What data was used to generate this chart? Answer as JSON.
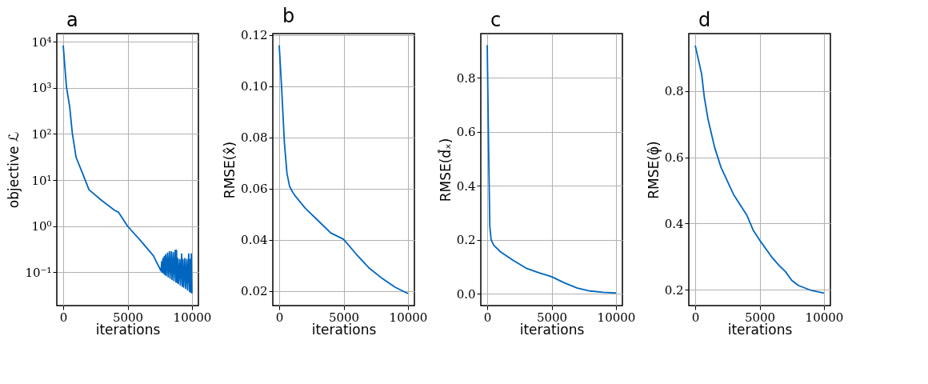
{
  "chart_data": [
    {
      "type": "line",
      "title": "a",
      "xlabel": "iterations",
      "ylabel": "objective ℒ",
      "log": "y",
      "grid": true,
      "xlim": [
        -500,
        10500
      ],
      "xticks": [
        0,
        5000,
        10000
      ],
      "ylim": [
        0.019,
        15000
      ],
      "yticks": [
        {
          "value": 10000,
          "label": "10⁴"
        },
        {
          "value": 1000,
          "label": "10³"
        },
        {
          "value": 100,
          "label": "10²"
        },
        {
          "value": 10,
          "label": "10¹"
        },
        {
          "value": 1,
          "label": "10⁰"
        },
        {
          "value": 0.1,
          "label": "10⁻¹"
        }
      ],
      "series": [
        {
          "color": "#0066c0",
          "x": [
            0,
            170,
            250,
            500,
            700,
            1000,
            1500,
            2000,
            3000,
            4000,
            4300,
            5000,
            6000,
            7000,
            7600,
            7650,
            7700,
            7750,
            7800,
            7850,
            7900,
            7950,
            8000,
            8100,
            8150,
            8250,
            8300,
            8400,
            8450,
            8550,
            8600,
            8700,
            8750,
            8800,
            8850,
            8900,
            8950,
            9050,
            9100,
            9200,
            9250,
            9300,
            9350,
            9450,
            9500,
            9600,
            9650,
            9750,
            9800,
            9850,
            9900,
            9950,
            10000
          ],
          "values": [
            8300,
            2000,
            1050,
            390,
            107,
            31,
            14,
            6.2,
            3.6,
            2.2,
            2.0,
            1.0,
            0.49,
            0.23,
            0.107,
            0.17,
            0.1,
            0.2,
            0.095,
            0.22,
            0.09,
            0.24,
            0.085,
            0.26,
            0.08,
            0.28,
            0.075,
            0.28,
            0.07,
            0.27,
            0.066,
            0.3,
            0.062,
            0.3,
            0.06,
            0.2,
            0.057,
            0.19,
            0.053,
            0.25,
            0.05,
            0.19,
            0.048,
            0.2,
            0.045,
            0.19,
            0.042,
            0.25,
            0.039,
            0.19,
            0.037,
            0.25,
            0.035
          ]
        }
      ]
    },
    {
      "type": "line",
      "title": "b",
      "xlabel": "iterations",
      "ylabel": "RMSE(x̂)",
      "grid": true,
      "xlim": [
        -500,
        10500
      ],
      "xticks": [
        0,
        5000,
        10000
      ],
      "ylim": [
        0.0143,
        0.1206
      ],
      "yticks": [
        {
          "value": 0.02,
          "label": "0.02"
        },
        {
          "value": 0.04,
          "label": "0.04"
        },
        {
          "value": 0.06,
          "label": "0.06"
        },
        {
          "value": 0.08,
          "label": "0.08"
        },
        {
          "value": 0.1,
          "label": "0.10"
        },
        {
          "value": 0.12,
          "label": "0.12"
        }
      ],
      "series": [
        {
          "color": "#0066c0",
          "x": [
            0,
            200,
            400,
            600,
            800,
            1000,
            1200,
            2000,
            3000,
            4000,
            5000,
            6000,
            7000,
            8000,
            9000,
            10000
          ],
          "values": [
            0.116,
            0.098,
            0.078,
            0.066,
            0.061,
            0.059,
            0.0574,
            0.0525,
            0.0476,
            0.0427,
            0.0402,
            0.0343,
            0.0289,
            0.0249,
            0.0215,
            0.019
          ]
        }
      ]
    },
    {
      "type": "line",
      "title": "c",
      "xlabel": "iterations",
      "ylabel": "RMSE(d̂ₓ)",
      "grid": true,
      "xlim": [
        -500,
        10500
      ],
      "xticks": [
        0,
        5000,
        10000
      ],
      "ylim": [
        -0.044,
        0.963
      ],
      "yticks": [
        {
          "value": 0,
          "label": "0.0"
        },
        {
          "value": 0.2,
          "label": "0.2"
        },
        {
          "value": 0.4,
          "label": "0.4"
        },
        {
          "value": 0.6,
          "label": "0.6"
        },
        {
          "value": 0.8,
          "label": "0.8"
        }
      ],
      "series": [
        {
          "color": "#0066c0",
          "x": [
            0,
            100,
            200,
            300,
            500,
            1000,
            2000,
            3000,
            4000,
            5000,
            6000,
            7000,
            8000,
            9000,
            10000
          ],
          "values": [
            0.92,
            0.56,
            0.25,
            0.2,
            0.18,
            0.156,
            0.124,
            0.095,
            0.078,
            0.063,
            0.04,
            0.021,
            0.01,
            0.005,
            0.003
          ]
        }
      ]
    },
    {
      "type": "line",
      "title": "d",
      "xlabel": "iterations",
      "ylabel": "RMSE(φ̂)",
      "grid": true,
      "xlim": [
        -500,
        10500
      ],
      "xticks": [
        0,
        5000,
        10000
      ],
      "ylim": [
        0.152,
        0.974
      ],
      "yticks": [
        {
          "value": 0.2,
          "label": "0.2"
        },
        {
          "value": 0.4,
          "label": "0.4"
        },
        {
          "value": 0.6,
          "label": "0.6"
        },
        {
          "value": 0.8,
          "label": "0.8"
        }
      ],
      "series": [
        {
          "color": "#0066c0",
          "x": [
            0,
            500,
            700,
            1000,
            1500,
            2000,
            3000,
            4000,
            4500,
            5000,
            6000,
            6500,
            7000,
            7500,
            8000,
            9000,
            10000
          ],
          "values": [
            0.938,
            0.851,
            0.783,
            0.714,
            0.631,
            0.57,
            0.486,
            0.426,
            0.38,
            0.35,
            0.296,
            0.274,
            0.255,
            0.228,
            0.213,
            0.198,
            0.19
          ]
        }
      ]
    }
  ]
}
